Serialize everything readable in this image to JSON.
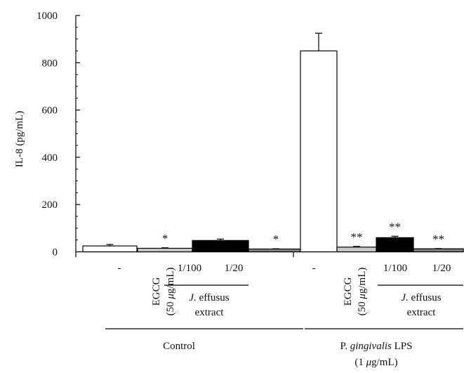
{
  "chart_data": {
    "type": "bar",
    "ylabel": "IL-8 (pg/mL)",
    "ylim": [
      0,
      1000
    ],
    "yticks": [
      0,
      200,
      400,
      600,
      800,
      1000
    ],
    "minor_ticks_between": 3,
    "groups": [
      {
        "label": "Control",
        "label_line2": "",
        "subgroup": {
          "line1_prefix": "J.",
          "line1_suffix": " effusus",
          "line2": "extract"
        },
        "bars": [
          {
            "category": "-",
            "value": 25,
            "error": 6,
            "color": "#ffffff",
            "sig": ""
          },
          {
            "category": "EGCG (50 μg/mL)",
            "cat_line1": "EGCG",
            "cat_line2": "(50 μg/mL)",
            "value": 15,
            "error": 2,
            "color": "#c8c8c8",
            "sig": "*"
          },
          {
            "category": "1/100",
            "value": 48,
            "error": 6,
            "color": "#000000",
            "sig": ""
          },
          {
            "category": "1/20",
            "value": 12,
            "error": 1,
            "color": "#808080",
            "sig": "*"
          }
        ]
      },
      {
        "label": "P. gingivalis LPS",
        "label_prefix": "P.",
        "label_italic": " gingivalis",
        "label_suffix": " LPS",
        "label_line2": "(1 μg/mL)",
        "subgroup": {
          "line1_prefix": "J.",
          "line1_suffix": " effusus",
          "line2": "extract"
        },
        "bars": [
          {
            "category": "-",
            "value": 850,
            "error": 75,
            "color": "#ffffff",
            "sig": ""
          },
          {
            "category": "EGCG (50 μg/mL)",
            "cat_line1": "EGCG",
            "cat_line2": "(50 μg/mL)",
            "value": 20,
            "error": 3,
            "color": "#c8c8c8",
            "sig": "**"
          },
          {
            "category": "1/100",
            "value": 60,
            "error": 6,
            "color": "#000000",
            "sig": "**"
          },
          {
            "category": "1/20",
            "value": 13,
            "error": 1,
            "color": "#808080",
            "sig": "**"
          }
        ]
      }
    ],
    "grid": false,
    "legend": "none"
  }
}
